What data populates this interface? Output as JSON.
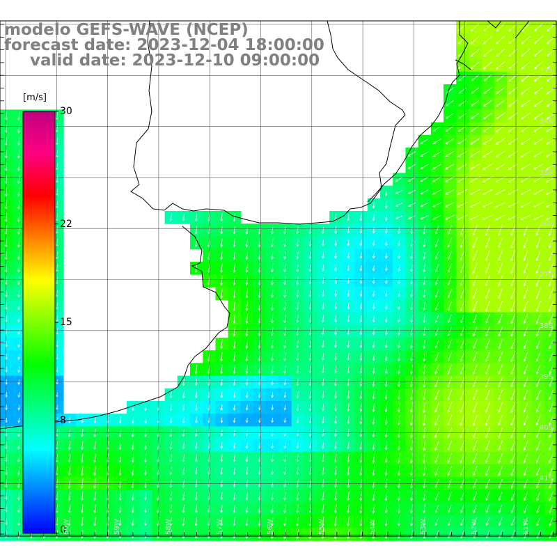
{
  "title": {
    "line1": "modelo GEFS-WAVE (NCEP)",
    "line2": "forecast date: 2023-12-04 18:00:00",
    "line3": "valid date: 2023-12-10 09:00:00"
  },
  "colorbar": {
    "unit": "[m/s]",
    "min": 0,
    "max": 30,
    "ticks": [
      {
        "value": 30,
        "label": "30"
      },
      {
        "value": 22,
        "label": "22"
      },
      {
        "value": 15,
        "label": "15"
      },
      {
        "value": 8,
        "label": "8"
      },
      {
        "value": 0,
        "label": "0"
      }
    ],
    "colors": [
      "#0000ff",
      "#0080ff",
      "#00ffff",
      "#00ff80",
      "#00ff00",
      "#80ff00",
      "#ffff00",
      "#ff8000",
      "#ff0000",
      "#ff0080",
      "#c00080"
    ]
  },
  "map": {
    "variable": "wind speed",
    "lat_labels": [
      "33S",
      "34S",
      "35S",
      "36S",
      "37S",
      "38S",
      "39S",
      "40S",
      "41S"
    ],
    "lon_labels": [
      "60W",
      "59W",
      "58W",
      "57W",
      "56W",
      "55W",
      "54W",
      "53W",
      "52W",
      "51W"
    ],
    "wind_direction": "mostly from north-northeast toward south-southwest"
  }
}
